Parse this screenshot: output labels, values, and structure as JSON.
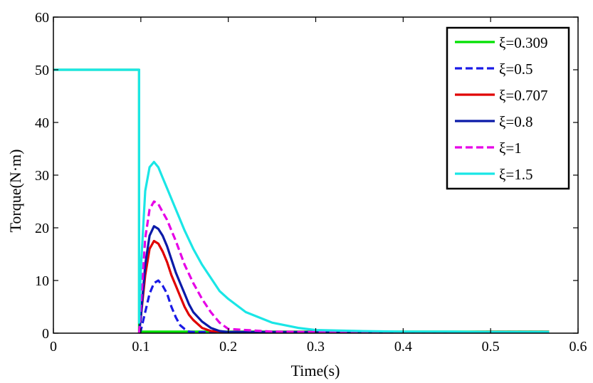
{
  "chart_data": {
    "type": "line",
    "xlabel": "Time(s)",
    "ylabel": "Torque(N·m)",
    "xlim": [
      0,
      0.6
    ],
    "ylim": [
      0,
      60
    ],
    "xticks": [
      "0",
      "0.1",
      "0.2",
      "0.3",
      "0.4",
      "0.5",
      "0.6"
    ],
    "yticks": [
      "0",
      "10",
      "20",
      "30",
      "40",
      "50",
      "60"
    ],
    "grid": false,
    "legend_position": "top-right",
    "series": [
      {
        "name": "ξ=0.309",
        "color": "#00e000",
        "dash": "solid",
        "x": [
          0,
          0.098,
          0.098,
          0.1,
          0.15,
          0.2,
          0.3,
          0.4,
          0.5,
          0.567
        ],
        "y": [
          50,
          50,
          0.3,
          0.3,
          0.3,
          0.3,
          0.3,
          0.3,
          0.3,
          0.3
        ]
      },
      {
        "name": "ξ=0.5",
        "color": "#1a1ae6",
        "dash": "dashed",
        "x": [
          0.098,
          0.1,
          0.105,
          0.11,
          0.115,
          0.12,
          0.125,
          0.13,
          0.135,
          0.14,
          0.145,
          0.15,
          0.155,
          0.16,
          0.2,
          0.3,
          0.567
        ],
        "y": [
          0,
          0.5,
          4,
          7.5,
          9.5,
          10,
          9,
          7.5,
          5,
          3,
          1.5,
          0.8,
          0.3,
          0.2,
          0.2,
          0.2,
          0.2
        ]
      },
      {
        "name": "ξ=0.707",
        "color": "#e00000",
        "dash": "solid",
        "x": [
          0.098,
          0.1,
          0.105,
          0.11,
          0.115,
          0.12,
          0.125,
          0.13,
          0.135,
          0.14,
          0.145,
          0.15,
          0.155,
          0.16,
          0.17,
          0.18,
          0.2,
          0.567
        ],
        "y": [
          0,
          3,
          11,
          16,
          17.5,
          17,
          15.5,
          13.5,
          11,
          9,
          7,
          5,
          3.5,
          2.5,
          1,
          0.4,
          0.2,
          0.2
        ]
      },
      {
        "name": "ξ=0.8",
        "color": "#0a1aa8",
        "dash": "solid",
        "x": [
          0.098,
          0.1,
          0.105,
          0.11,
          0.115,
          0.12,
          0.125,
          0.13,
          0.135,
          0.14,
          0.145,
          0.15,
          0.155,
          0.16,
          0.17,
          0.18,
          0.19,
          0.2,
          0.567
        ],
        "y": [
          0,
          3,
          13,
          18.5,
          20.3,
          19.8,
          18.5,
          16.5,
          14,
          11.5,
          9.5,
          7.5,
          5.5,
          4,
          2.2,
          1,
          0.4,
          0.2,
          0.2
        ]
      },
      {
        "name": "ξ=1",
        "color": "#e600e6",
        "dash": "dashed",
        "x": [
          0.098,
          0.1,
          0.105,
          0.11,
          0.115,
          0.12,
          0.125,
          0.13,
          0.135,
          0.14,
          0.15,
          0.16,
          0.17,
          0.18,
          0.19,
          0.2,
          0.25,
          0.3,
          0.567
        ],
        "y": [
          0,
          5,
          18,
          23.5,
          25,
          24.5,
          23,
          21.5,
          19.5,
          17.5,
          13,
          9.5,
          6.5,
          4,
          2,
          0.8,
          0.3,
          0.2,
          0.2
        ]
      },
      {
        "name": "ξ=1.5",
        "color": "#1ae6e6",
        "dash": "solid",
        "x": [
          0,
          0.098,
          0.098,
          0.1,
          0.105,
          0.11,
          0.115,
          0.12,
          0.125,
          0.13,
          0.14,
          0.15,
          0.16,
          0.17,
          0.18,
          0.19,
          0.2,
          0.22,
          0.25,
          0.28,
          0.3,
          0.35,
          0.4,
          0.45,
          0.5,
          0.567
        ],
        "y": [
          50,
          50,
          2,
          12,
          27,
          31.5,
          32.5,
          31.5,
          29.5,
          27.5,
          23.5,
          19.5,
          16,
          13,
          10.5,
          8,
          6.5,
          4,
          2,
          1,
          0.6,
          0.4,
          0.3,
          0.3,
          0.2,
          0.2
        ]
      }
    ]
  }
}
